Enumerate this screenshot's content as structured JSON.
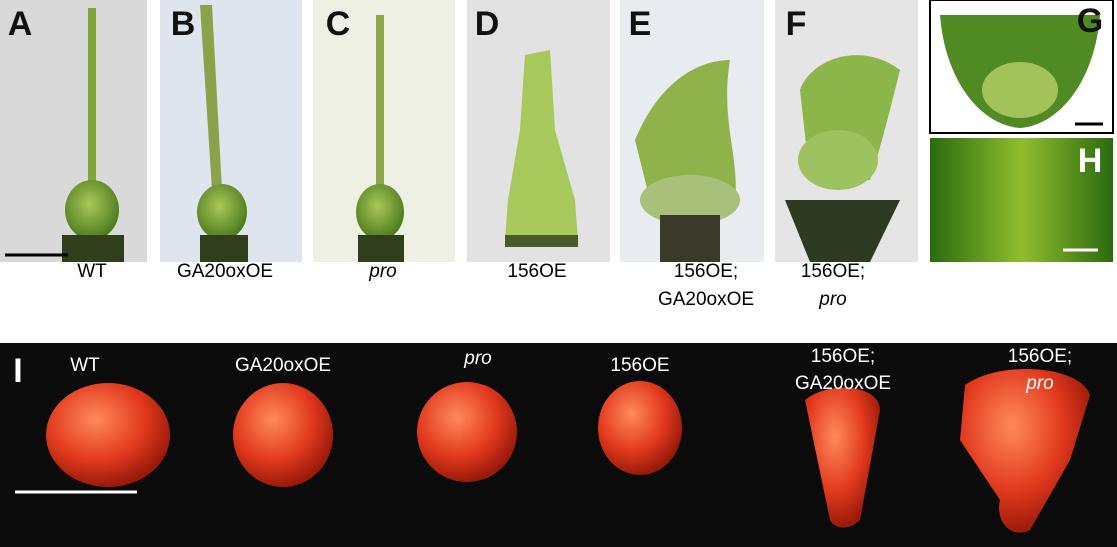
{
  "panels": [
    {
      "letter": "A",
      "label": [
        "WT"
      ]
    },
    {
      "letter": "B",
      "label": [
        "GA20oxOE"
      ]
    },
    {
      "letter": "C",
      "label": [
        "pro"
      ]
    },
    {
      "letter": "D",
      "label": [
        "156OE"
      ]
    },
    {
      "letter": "E",
      "label": [
        "156OE;",
        "GA20oxOE"
      ]
    },
    {
      "letter": "F",
      "label": [
        "156OE;",
        "pro"
      ]
    },
    {
      "letter": "G"
    },
    {
      "letter": "H"
    }
  ],
  "fruit_panel": {
    "letter": "I",
    "fruits": [
      {
        "label": [
          "WT"
        ]
      },
      {
        "label": [
          "GA20oxOE"
        ]
      },
      {
        "label": [
          "pro"
        ]
      },
      {
        "label": [
          "156OE"
        ]
      },
      {
        "label": [
          "156OE;",
          "GA20oxOE"
        ]
      },
      {
        "label": [
          "156OE;",
          "pro"
        ]
      }
    ]
  }
}
